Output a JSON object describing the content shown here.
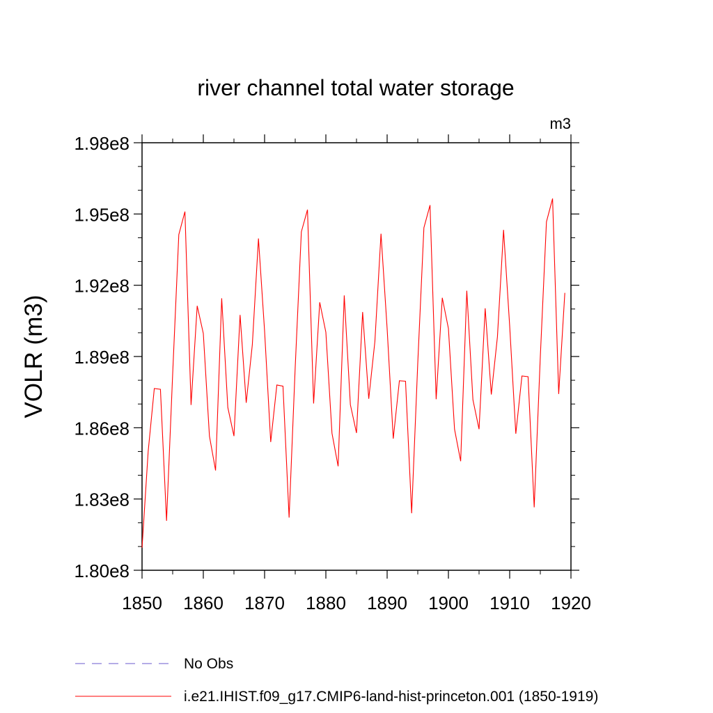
{
  "chart_data": {
    "type": "line",
    "title": "river channel total water storage",
    "units_label": "m3",
    "ylabel": "VOLR  (m3)",
    "xlabel": "",
    "xlim": [
      1850,
      1920
    ],
    "ylim": [
      180000000.0,
      198000000.0
    ],
    "x_ticks": [
      1850,
      1860,
      1870,
      1880,
      1890,
      1900,
      1910,
      1920
    ],
    "x_tick_labels": [
      "1850",
      "1860",
      "1870",
      "1880",
      "1890",
      "1900",
      "1910",
      "1920"
    ],
    "y_ticks": [
      180000000.0,
      183000000.0,
      186000000.0,
      189000000.0,
      192000000.0,
      195000000.0,
      198000000.0
    ],
    "y_tick_labels": [
      "1.80e8",
      "1.83e8",
      "1.86e8",
      "1.89e8",
      "1.92e8",
      "1.95e8",
      "1.98e8"
    ],
    "grid": false,
    "legend_placement": "below",
    "legend": [
      {
        "label": "No Obs",
        "color": "#6a5acd",
        "style": "dashed"
      },
      {
        "label": "i.e21.IHIST.f09_g17.CMIP6-land-hist-princeton.001 (1850-1919)",
        "color": "#ff0000",
        "style": "solid"
      }
    ],
    "series": [
      {
        "name": "i.e21.IHIST.f09_g17.CMIP6-land-hist-princeton.001 (1850-1919)",
        "color": "#ff0000",
        "x": [
          1850,
          1851,
          1852,
          1853,
          1854,
          1855,
          1856,
          1857,
          1858,
          1859,
          1860,
          1861,
          1862,
          1863,
          1864,
          1865,
          1866,
          1867,
          1868,
          1869,
          1870,
          1871,
          1872,
          1873,
          1874,
          1875,
          1876,
          1877,
          1878,
          1879,
          1880,
          1881,
          1882,
          1883,
          1884,
          1885,
          1886,
          1887,
          1888,
          1889,
          1890,
          1891,
          1892,
          1893,
          1894,
          1895,
          1896,
          1897,
          1898,
          1899,
          1900,
          1901,
          1902,
          1903,
          1904,
          1905,
          1906,
          1907,
          1908,
          1909,
          1910,
          1911,
          1912,
          1913,
          1914,
          1915,
          1916,
          1917,
          1918,
          1919
        ],
        "values": [
          180950000.0,
          185000000.0,
          187650000.0,
          187620000.0,
          182080000.0,
          188280000.0,
          194130000.0,
          195100000.0,
          186960000.0,
          191130000.0,
          189970000.0,
          185650000.0,
          184200000.0,
          191450000.0,
          186850000.0,
          185650000.0,
          190750000.0,
          187050000.0,
          189500000.0,
          193970000.0,
          190070000.0,
          185400000.0,
          187800000.0,
          187750000.0,
          182220000.0,
          188570000.0,
          194250000.0,
          195180000.0,
          187020000.0,
          191280000.0,
          190020000.0,
          185770000.0,
          184380000.0,
          191570000.0,
          186970000.0,
          185780000.0,
          190870000.0,
          187220000.0,
          189630000.0,
          194170000.0,
          190170000.0,
          185540000.0,
          187980000.0,
          187960000.0,
          182400000.0,
          188730000.0,
          194420000.0,
          195370000.0,
          187200000.0,
          191470000.0,
          190180000.0,
          185940000.0,
          184590000.0,
          191770000.0,
          187180000.0,
          185940000.0,
          191030000.0,
          187400000.0,
          189830000.0,
          194330000.0,
          190280000.0,
          185750000.0,
          188180000.0,
          188150000.0,
          182650000.0,
          189000000.0,
          194670000.0,
          195650000.0,
          187420000.0,
          191680000.0
        ]
      }
    ]
  }
}
